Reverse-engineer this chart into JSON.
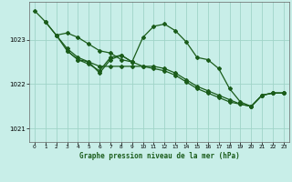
{
  "title": "Graphe pression niveau de la mer (hPa)",
  "background_color": "#c8eee8",
  "grid_color": "#a0d4c8",
  "line_color": "#1a5c1a",
  "xlim": [
    -0.5,
    23.5
  ],
  "ylim": [
    1020.7,
    1023.85
  ],
  "yticks": [
    1021,
    1022,
    1023
  ],
  "xticks": [
    0,
    1,
    2,
    3,
    4,
    5,
    6,
    7,
    8,
    9,
    10,
    11,
    12,
    13,
    14,
    15,
    16,
    17,
    18,
    19,
    20,
    21,
    22,
    23
  ],
  "line1_x": [
    0,
    1,
    2,
    3,
    4,
    5,
    6,
    7,
    8,
    9,
    10,
    11,
    12,
    13,
    14,
    15,
    16,
    17,
    18,
    19,
    20,
    21,
    22,
    23
  ],
  "line1_y": [
    1023.65,
    1023.4,
    1023.1,
    1023.15,
    1023.05,
    1022.9,
    1022.75,
    1022.7,
    1022.55,
    1022.5,
    1023.05,
    1023.3,
    1023.35,
    1023.2,
    1022.95,
    1022.6,
    1022.55,
    1022.35,
    1021.9,
    1021.6,
    1021.5,
    1021.75,
    1021.8,
    1021.8
  ],
  "line2_x": [
    1,
    2,
    3,
    4,
    5,
    6,
    7,
    8,
    9,
    10,
    11,
    12,
    13,
    14,
    15,
    16,
    17,
    18,
    19,
    20,
    21,
    22,
    23
  ],
  "line2_y": [
    1023.4,
    1023.1,
    1022.8,
    1022.6,
    1022.5,
    1022.4,
    1022.4,
    1022.4,
    1022.4,
    1022.4,
    1022.4,
    1022.35,
    1022.25,
    1022.1,
    1021.95,
    1021.85,
    1021.75,
    1021.65,
    1021.55,
    1021.5,
    1021.75,
    1021.8,
    1021.8
  ],
  "line3_x": [
    2,
    3,
    4,
    5,
    6,
    7,
    8,
    9,
    10,
    11,
    12,
    13,
    14,
    15,
    16,
    17,
    18,
    19,
    20,
    21,
    22,
    23
  ],
  "line3_y": [
    1023.1,
    1022.75,
    1022.55,
    1022.45,
    1022.3,
    1022.6,
    1022.65,
    1022.5,
    1022.4,
    1022.35,
    1022.3,
    1022.2,
    1022.05,
    1021.9,
    1021.8,
    1021.7,
    1021.6,
    1021.55,
    1021.5,
    1021.75,
    1021.8,
    1021.8
  ],
  "line4_x": [
    3,
    4,
    5,
    6,
    7,
    8,
    9
  ],
  "line4_y": [
    1022.75,
    1022.55,
    1022.5,
    1022.25,
    1022.55,
    1022.65,
    1022.5
  ]
}
